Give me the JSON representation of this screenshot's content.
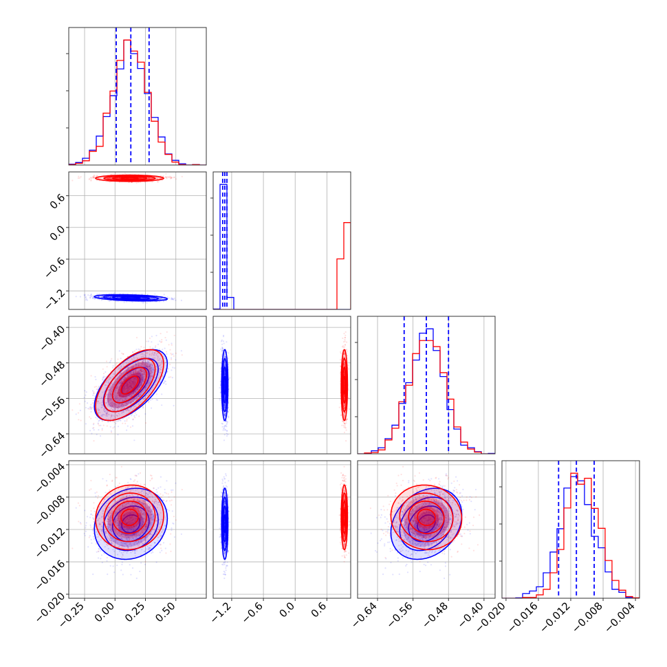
{
  "chart_data": {
    "type": "corner",
    "grid": true,
    "colors": {
      "series_a": "#0000ff",
      "series_b": "#ff0000"
    },
    "series": [
      {
        "color": "#0000ff",
        "means": [
          0.13,
          -1.33,
          -0.53,
          -0.0113
        ],
        "sds": [
          0.15,
          0.03,
          0.04,
          0.0022
        ],
        "corr_21": 0.6,
        "corr_31": 0.15,
        "corr_32": 0.25,
        "corr_10": -0.35
      },
      {
        "color": "#ff0000",
        "means": [
          0.12,
          0.93,
          -0.53,
          -0.0105
        ],
        "sds": [
          0.14,
          0.03,
          0.04,
          0.002
        ],
        "corr_21": 0.6,
        "corr_31": 0.05,
        "corr_32": -0.05,
        "corr_10": 0.0
      }
    ],
    "quantiles": [
      [
        0.01,
        0.13,
        0.28
      ],
      [
        -1.37,
        -1.33,
        -1.29
      ],
      [
        -0.58,
        -0.53,
        -0.48
      ],
      [
        -0.0135,
        -0.0113,
        -0.0091
      ]
    ],
    "ranges": [
      [
        -0.38,
        0.75
      ],
      [
        -1.55,
        1.05
      ],
      [
        -0.685,
        -0.375
      ],
      [
        -0.0205,
        -0.0035
      ]
    ],
    "ticks": [
      [
        "−0.25",
        "0.00",
        "0.25",
        "0.50"
      ],
      [
        "−1.2",
        "−0.6",
        "0.0",
        "0.6"
      ],
      [
        "−0.64",
        "−0.56",
        "−0.48",
        "−0.40"
      ],
      [
        "−0.020",
        "−0.016",
        "−0.012",
        "−0.008",
        "−0.004"
      ]
    ],
    "tick_values": [
      [
        -0.25,
        0.0,
        0.25,
        0.5
      ],
      [
        -1.2,
        -0.6,
        0.0,
        0.6
      ],
      [
        -0.64,
        -0.56,
        -0.48,
        -0.4
      ],
      [
        -0.02,
        -0.016,
        -0.012,
        -0.008,
        -0.004
      ]
    ]
  }
}
